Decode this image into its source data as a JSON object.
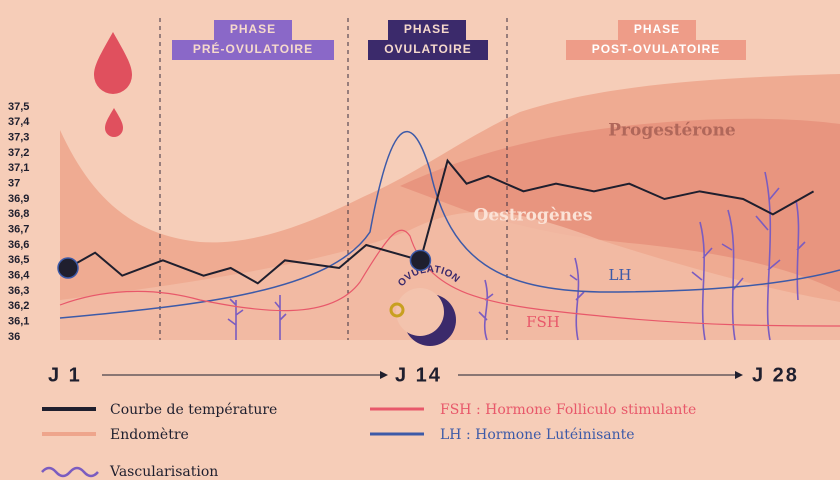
{
  "chart_data": {
    "type": "line",
    "xlim": [
      1,
      28
    ],
    "xticks": [
      {
        "value": 1,
        "label": "J 1"
      },
      {
        "value": 14,
        "label": "J 14"
      },
      {
        "value": 28,
        "label": "J 28"
      }
    ],
    "ylim": [
      36,
      37.5
    ],
    "yticks": [
      36,
      {
        "value": 36.1,
        "label": "36,1"
      },
      {
        "value": 36.2,
        "label": "36,2"
      },
      {
        "value": 36.3,
        "label": "36,3"
      },
      {
        "value": 36.4,
        "label": "36,4"
      },
      {
        "value": 36.5,
        "label": "36,5"
      },
      {
        "value": 36.6,
        "label": "36,6"
      },
      {
        "value": 36.7,
        "label": "36,7"
      },
      {
        "value": 36.8,
        "label": "36,8"
      },
      {
        "value": 36.9,
        "label": "36,9"
      },
      37,
      {
        "value": 37.1,
        "label": "37,1"
      },
      {
        "value": 37.2,
        "label": "37,2"
      },
      {
        "value": 37.3,
        "label": "37,3"
      },
      {
        "value": 37.4,
        "label": "37,4"
      },
      {
        "value": 37.5,
        "label": "37,5"
      }
    ],
    "x": [
      1,
      2,
      3,
      4.5,
      6,
      7,
      8,
      9,
      11,
      12,
      14,
      15,
      15.7,
      16.5,
      17.8,
      19,
      20.4,
      21.7,
      23,
      24.3,
      25.9,
      27,
      28.5
    ],
    "series": [
      {
        "name": "Courbe de température",
        "color": "#1f1f2e",
        "values": [
          36.45,
          36.55,
          36.4,
          36.5,
          36.4,
          36.45,
          36.35,
          36.5,
          36.45,
          36.6,
          36.5,
          37.15,
          37,
          37.05,
          36.95,
          37,
          36.95,
          37,
          36.9,
          36.95,
          36.9,
          36.8,
          36.95
        ]
      }
    ],
    "legend_extra": [
      {
        "name": "Endomètre",
        "color": "#eea58c"
      },
      {
        "name": "Vascularisation",
        "color": "#7b5cc0"
      },
      {
        "name": "FSH : Hormone Folliculo stimulante",
        "color": "#e8586a"
      },
      {
        "name": "LH : Hormone Lutéinisante",
        "color": "#3d5aa8"
      }
    ],
    "phases": [
      {
        "line1": "PHASE",
        "line2": "PRÉ-OVULATOIRE"
      },
      {
        "line1": "PHASE",
        "line2": "OVULATOIRE"
      },
      {
        "line1": "PHASE",
        "line2": "POST-OVULATOIRE"
      }
    ],
    "curve_labels": {
      "progesterone": "Progestérone",
      "oestrogenes": "Oestrogènes",
      "lh": "LH",
      "fsh": "FSH"
    },
    "annotation": "OVULATION"
  }
}
